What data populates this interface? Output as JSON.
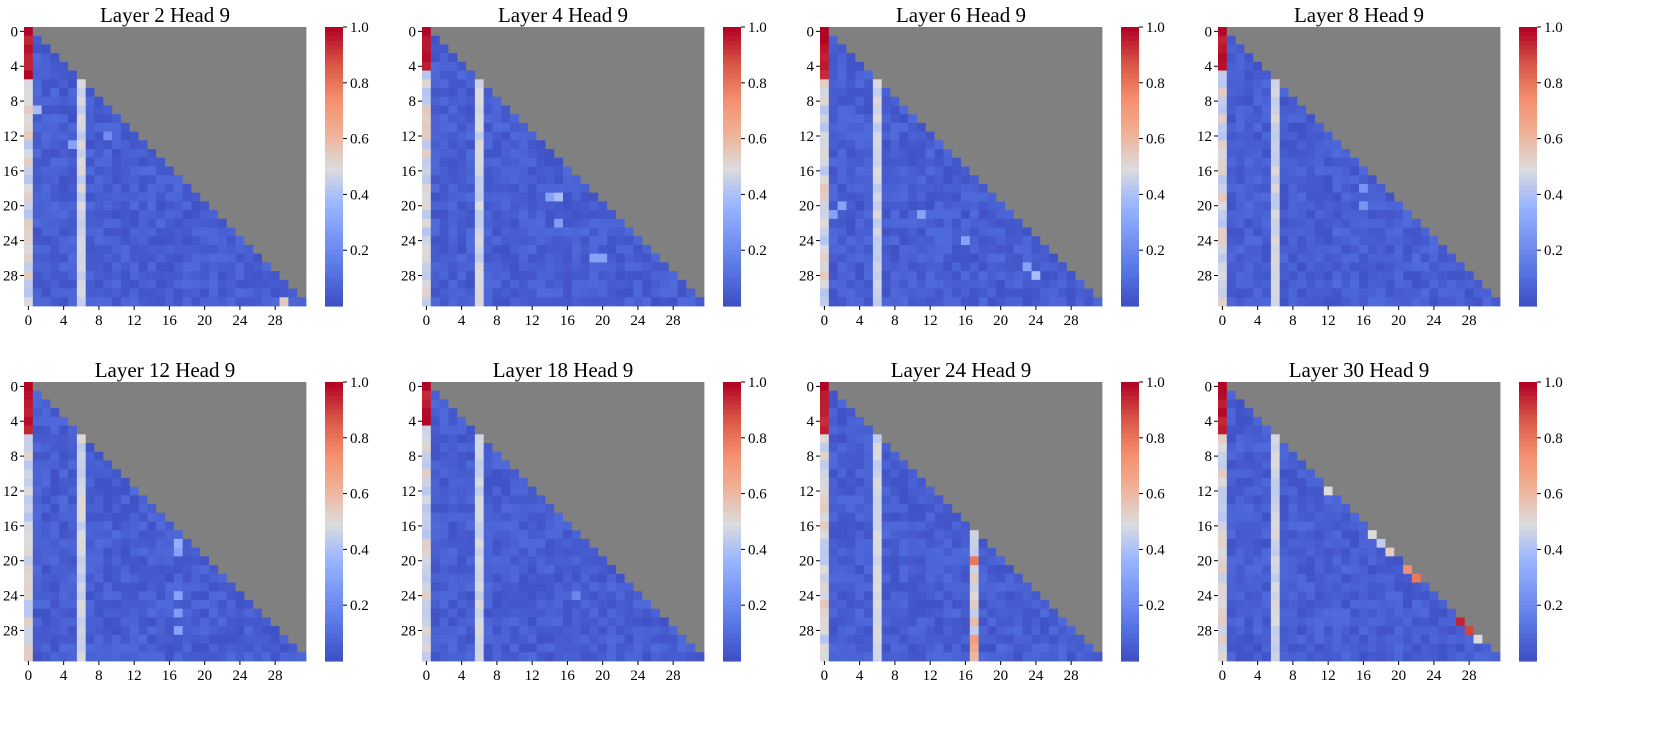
{
  "figure": {
    "colormap": "coolwarm",
    "masked_color": "#808080",
    "background": "#ffffff"
  },
  "chart_data": [
    {
      "type": "heatmap",
      "title": "Layer 2  Head 9",
      "matrix_size": 32,
      "xticks": [
        "0",
        "4",
        "8",
        "12",
        "16",
        "20",
        "24",
        "28"
      ],
      "yticks": [
        "0",
        "4",
        "8",
        "12",
        "16",
        "20",
        "24",
        "28"
      ],
      "colorbar": {
        "ticks": [
          "1.0",
          "0.8",
          "0.6",
          "0.4",
          "0.2"
        ],
        "range": [
          0,
          1
        ]
      },
      "sink_columns": [
        0,
        6
      ],
      "sink_rows": [
        0,
        1,
        2,
        3,
        4,
        5
      ],
      "highlights": [
        {
          "row": 9,
          "col": 1,
          "value": 0.4
        },
        {
          "row": 13,
          "col": 5,
          "value": 0.3
        },
        {
          "row": 12,
          "col": 9,
          "value": 0.22
        },
        {
          "row": 31,
          "col": 29,
          "value": 0.55
        }
      ]
    },
    {
      "type": "heatmap",
      "title": "Layer 4  Head 9",
      "matrix_size": 32,
      "xticks": [
        "0",
        "4",
        "8",
        "12",
        "16",
        "20",
        "24",
        "28"
      ],
      "yticks": [
        "0",
        "4",
        "8",
        "12",
        "16",
        "20",
        "24",
        "28"
      ],
      "colorbar": {
        "ticks": [
          "1.0",
          "0.8",
          "0.6",
          "0.4",
          "0.2"
        ],
        "range": [
          0,
          1
        ]
      },
      "sink_columns": [
        0,
        6
      ],
      "sink_rows": [
        0,
        1,
        2,
        3,
        4
      ],
      "highlights": [
        {
          "row": 19,
          "col": 14,
          "value": 0.3
        },
        {
          "row": 19,
          "col": 15,
          "value": 0.4
        },
        {
          "row": 22,
          "col": 15,
          "value": 0.28
        },
        {
          "row": 26,
          "col": 19,
          "value": 0.3
        },
        {
          "row": 26,
          "col": 20,
          "value": 0.3
        }
      ]
    },
    {
      "type": "heatmap",
      "title": "Layer 6  Head 9",
      "matrix_size": 32,
      "xticks": [
        "0",
        "4",
        "8",
        "12",
        "16",
        "20",
        "24",
        "28"
      ],
      "yticks": [
        "0",
        "4",
        "8",
        "12",
        "16",
        "20",
        "24",
        "28"
      ],
      "colorbar": {
        "ticks": [
          "1.0",
          "0.8",
          "0.6",
          "0.4",
          "0.2"
        ],
        "range": [
          0,
          1
        ]
      },
      "sink_columns": [
        0,
        6
      ],
      "sink_rows": [
        0,
        1,
        2,
        3,
        4,
        5
      ],
      "highlights": [
        {
          "row": 20,
          "col": 2,
          "value": 0.3
        },
        {
          "row": 21,
          "col": 1,
          "value": 0.3
        },
        {
          "row": 21,
          "col": 11,
          "value": 0.3
        },
        {
          "row": 24,
          "col": 16,
          "value": 0.3
        },
        {
          "row": 27,
          "col": 23,
          "value": 0.3
        },
        {
          "row": 28,
          "col": 24,
          "value": 0.4
        }
      ]
    },
    {
      "type": "heatmap",
      "title": "Layer 8  Head 9",
      "matrix_size": 32,
      "xticks": [
        "0",
        "4",
        "8",
        "12",
        "16",
        "20",
        "24",
        "28"
      ],
      "yticks": [
        "0",
        "4",
        "8",
        "12",
        "16",
        "20",
        "24",
        "28"
      ],
      "colorbar": {
        "ticks": [
          "1.0",
          "0.8",
          "0.6",
          "0.4",
          "0.2"
        ],
        "range": [
          0,
          1
        ]
      },
      "sink_columns": [
        0,
        6
      ],
      "sink_rows": [
        0,
        1,
        2,
        3,
        4
      ],
      "highlights": [
        {
          "row": 18,
          "col": 16,
          "value": 0.25
        },
        {
          "row": 20,
          "col": 16,
          "value": 0.25
        }
      ]
    },
    {
      "type": "heatmap",
      "title": "Layer 12  Head 9",
      "matrix_size": 32,
      "xticks": [
        "0",
        "4",
        "8",
        "12",
        "16",
        "20",
        "24",
        "28"
      ],
      "yticks": [
        "0",
        "4",
        "8",
        "12",
        "16",
        "20",
        "24",
        "28"
      ],
      "colorbar": {
        "ticks": [
          "1.0",
          "0.8",
          "0.6",
          "0.4",
          "0.2"
        ],
        "range": [
          0,
          1
        ]
      },
      "sink_columns": [
        0,
        6
      ],
      "sink_rows": [
        0,
        1,
        2,
        3,
        4,
        5
      ],
      "highlights": [
        {
          "row": 18,
          "col": 17,
          "value": 0.35
        },
        {
          "row": 19,
          "col": 17,
          "value": 0.3
        },
        {
          "row": 24,
          "col": 17,
          "value": 0.3
        },
        {
          "row": 26,
          "col": 17,
          "value": 0.28
        },
        {
          "row": 28,
          "col": 17,
          "value": 0.3
        }
      ]
    },
    {
      "type": "heatmap",
      "title": "Layer 18  Head 9",
      "matrix_size": 32,
      "xticks": [
        "0",
        "4",
        "8",
        "12",
        "16",
        "20",
        "24",
        "28"
      ],
      "yticks": [
        "0",
        "4",
        "8",
        "12",
        "16",
        "20",
        "24",
        "28"
      ],
      "colorbar": {
        "ticks": [
          "1.0",
          "0.8",
          "0.6",
          "0.4",
          "0.2"
        ],
        "range": [
          0,
          1
        ]
      },
      "sink_columns": [
        0,
        6
      ],
      "sink_rows": [
        0,
        1,
        2,
        3,
        4
      ],
      "highlights": [
        {
          "row": 24,
          "col": 17,
          "value": 0.2
        }
      ]
    },
    {
      "type": "heatmap",
      "title": "Layer 24  Head 9",
      "matrix_size": 32,
      "xticks": [
        "0",
        "4",
        "8",
        "12",
        "16",
        "20",
        "24",
        "28"
      ],
      "yticks": [
        "0",
        "4",
        "8",
        "12",
        "16",
        "20",
        "24",
        "28"
      ],
      "colorbar": {
        "ticks": [
          "1.0",
          "0.8",
          "0.6",
          "0.4",
          "0.2"
        ],
        "range": [
          0,
          1
        ]
      },
      "sink_columns": [
        0,
        6,
        17
      ],
      "sink_rows": [
        0,
        1,
        2,
        3,
        4,
        5
      ],
      "highlights": [
        {
          "row": 20,
          "col": 17,
          "value": 0.8
        },
        {
          "row": 22,
          "col": 17,
          "value": 0.55
        },
        {
          "row": 25,
          "col": 17,
          "value": 0.55
        },
        {
          "row": 27,
          "col": 17,
          "value": 0.6
        },
        {
          "row": 29,
          "col": 17,
          "value": 0.7
        },
        {
          "row": 30,
          "col": 17,
          "value": 0.65
        },
        {
          "row": 31,
          "col": 17,
          "value": 0.6
        }
      ]
    },
    {
      "type": "heatmap",
      "title": "Layer 30  Head 9",
      "matrix_size": 32,
      "xticks": [
        "0",
        "4",
        "8",
        "12",
        "16",
        "20",
        "24",
        "28"
      ],
      "yticks": [
        "0",
        "4",
        "8",
        "12",
        "16",
        "20",
        "24",
        "28"
      ],
      "colorbar": {
        "ticks": [
          "1.0",
          "0.8",
          "0.6",
          "0.4",
          "0.2"
        ],
        "range": [
          0,
          1
        ]
      },
      "sink_columns": [
        0,
        6
      ],
      "sink_rows": [
        0,
        1,
        2,
        3,
        4,
        5
      ],
      "highlights": [
        {
          "row": 12,
          "col": 12,
          "value": 0.5
        },
        {
          "row": 17,
          "col": 17,
          "value": 0.5
        },
        {
          "row": 18,
          "col": 18,
          "value": 0.45
        },
        {
          "row": 19,
          "col": 19,
          "value": 0.55
        },
        {
          "row": 21,
          "col": 21,
          "value": 0.75
        },
        {
          "row": 22,
          "col": 22,
          "value": 0.8
        },
        {
          "row": 27,
          "col": 27,
          "value": 0.95
        },
        {
          "row": 28,
          "col": 28,
          "value": 0.9
        },
        {
          "row": 29,
          "col": 29,
          "value": 0.5
        }
      ]
    }
  ]
}
